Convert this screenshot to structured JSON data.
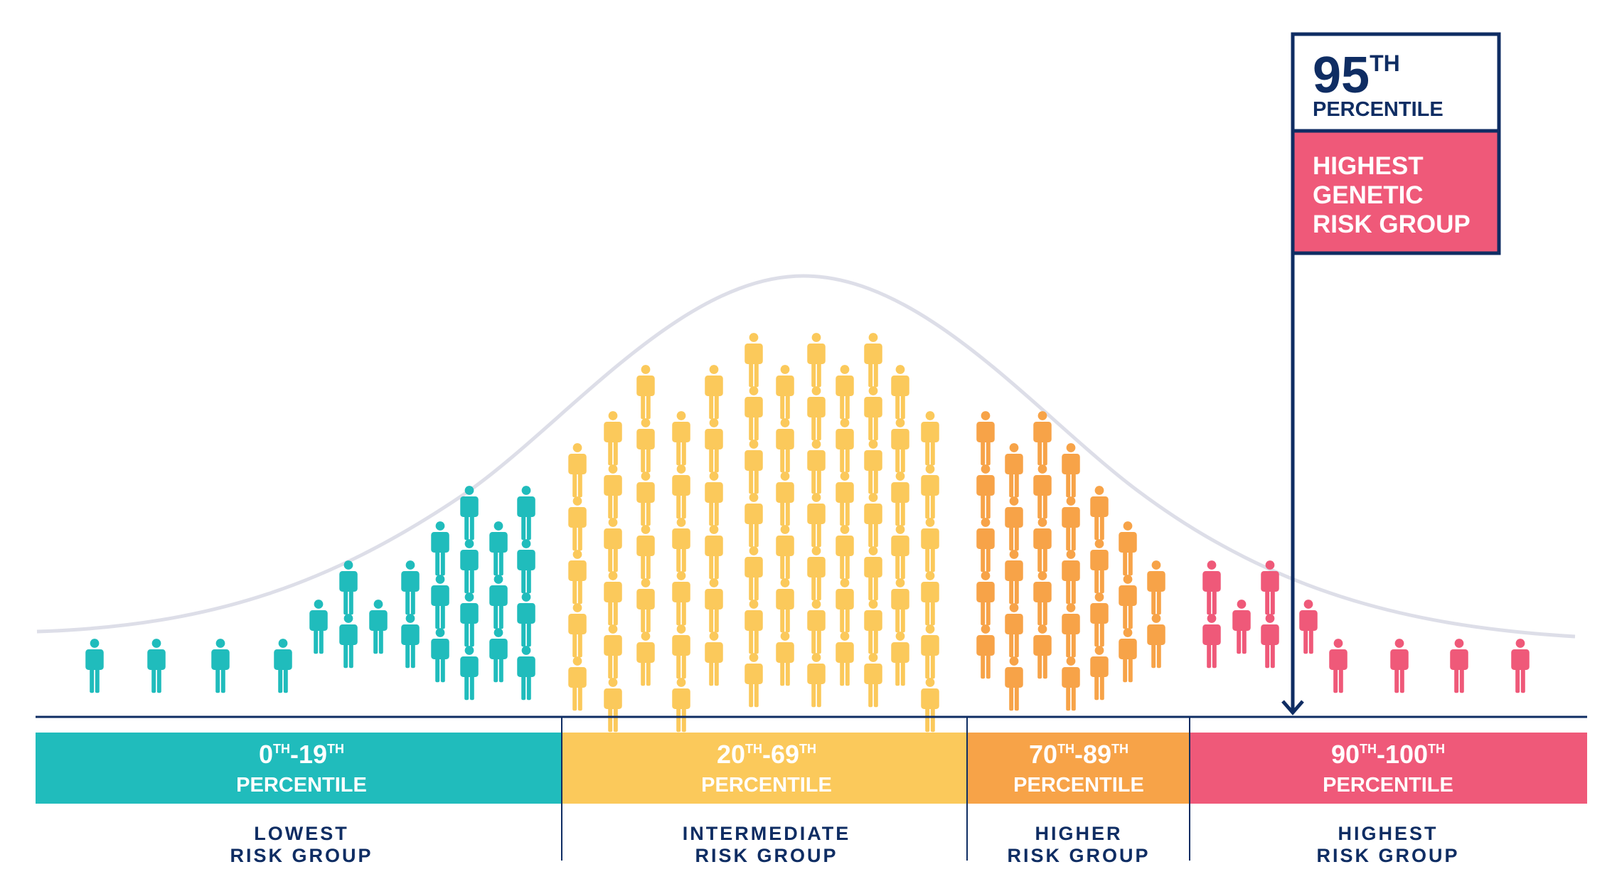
{
  "colors": {
    "navy": "#0f2d63",
    "teal": "#20bcbc",
    "yellow": "#fbc95b",
    "orange": "#f7a348",
    "pink": "#ef5979",
    "curve": "#dddee8"
  },
  "callout": {
    "number": "95",
    "suffix": "TH",
    "percentile_label": "PERCENTILE",
    "group_lines": [
      "HIGHEST",
      "GENETIC",
      "RISK GROUP"
    ],
    "marker_percentile": 95
  },
  "segments": [
    {
      "from": "0",
      "to": "19",
      "sup": "TH",
      "percentile_label": "PERCENTILE",
      "group_lines": [
        "LOWEST",
        "RISK GROUP"
      ],
      "color": "#20bcbc"
    },
    {
      "from": "20",
      "to": "69",
      "sup": "TH",
      "percentile_label": "PERCENTILE",
      "group_lines": [
        "INTERMEDIATE",
        "RISK GROUP"
      ],
      "color": "#fbc95b"
    },
    {
      "from": "70",
      "to": "89",
      "sup": "TH",
      "percentile_label": "PERCENTILE",
      "group_lines": [
        "HIGHER",
        "RISK GROUP"
      ],
      "color": "#f7a348"
    },
    {
      "from": "90",
      "to": "100",
      "sup": "TH",
      "percentile_label": "PERCENTILE",
      "group_lines": [
        "HIGHEST",
        "RISK GROUP"
      ],
      "color": "#ef5979"
    }
  ],
  "people_icon": "person-icon"
}
